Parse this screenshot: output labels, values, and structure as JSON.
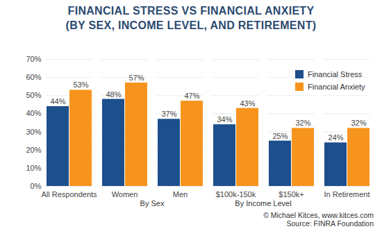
{
  "chart_data": {
    "type": "bar",
    "title": "FINANCIAL STRESS VS FINANCIAL ANXIETY",
    "subtitle": "(BY SEX, INCOME LEVEL, AND RETIREMENT)",
    "categories": [
      "All Respondents",
      "Women",
      "Men",
      "$100k-150k",
      "$150k+",
      "In Retirement"
    ],
    "groups": [
      {
        "label": "By Sex",
        "categories": [
          "Women",
          "Men"
        ]
      },
      {
        "label": "By Income Level",
        "categories": [
          "$100k-150k",
          "$150k+"
        ]
      }
    ],
    "series": [
      {
        "name": "Financial Stress",
        "color": "#1d4f8c",
        "values": [
          44,
          48,
          37,
          34,
          25,
          24
        ],
        "value_labels": [
          "44%",
          "48%",
          "37%",
          "34%",
          "25%",
          "24%"
        ]
      },
      {
        "name": "Financial Anxiety",
        "color": "#f7941d",
        "values": [
          53,
          57,
          47,
          43,
          32,
          32
        ],
        "value_labels": [
          "53%",
          "57%",
          "47%",
          "43%",
          "32%",
          "32%"
        ]
      }
    ],
    "ylim": [
      0,
      70
    ],
    "yticks": [
      {
        "value": 0,
        "label": "0%"
      },
      {
        "value": 10,
        "label": "10%"
      },
      {
        "value": 20,
        "label": "20%"
      },
      {
        "value": 30,
        "label": "30%"
      },
      {
        "value": 40,
        "label": "40%"
      },
      {
        "value": 50,
        "label": "50%"
      },
      {
        "value": 60,
        "label": "60%"
      },
      {
        "value": 70,
        "label": "70%"
      }
    ],
    "grid": true,
    "data_labels": true,
    "legend": "top-right",
    "annotations": [
      "© Michael Kitces, www.kitces.com",
      "Source: FINRA Foundation"
    ]
  }
}
